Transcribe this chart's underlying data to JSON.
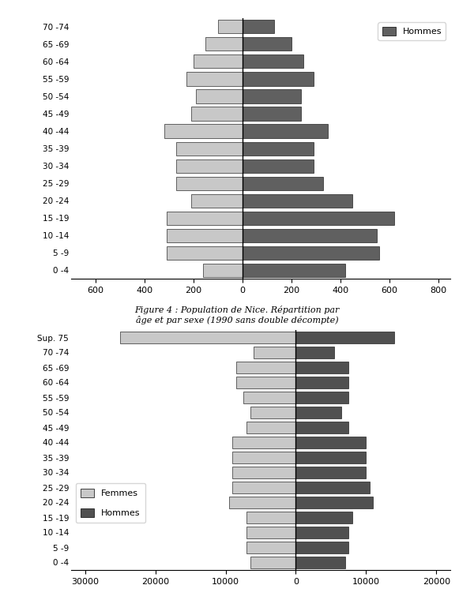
{
  "chart1": {
    "age_groups": [
      "0 -4",
      "5 -9",
      "10 -14",
      "15 -19",
      "20 -24",
      "25 -29",
      "30 -34",
      "35 -39",
      "40 -44",
      "45 -49",
      "50 -54",
      "55 -59",
      "60 -64",
      "65 -69",
      "70 -74"
    ],
    "femmes": [
      160,
      310,
      310,
      310,
      210,
      270,
      270,
      270,
      320,
      210,
      190,
      230,
      200,
      150,
      100
    ],
    "hommes": [
      420,
      560,
      550,
      620,
      450,
      330,
      290,
      290,
      350,
      240,
      240,
      290,
      250,
      200,
      130
    ],
    "color_femmes": "#c8c8c8",
    "color_hommes": "#606060",
    "xlim": [
      -700,
      850
    ],
    "xticks": [
      -600,
      -400,
      -200,
      0,
      200,
      400,
      600,
      800
    ],
    "xticklabels": [
      "600",
      "400",
      "200",
      "0",
      "200",
      "400",
      "600",
      "800"
    ]
  },
  "chart2": {
    "age_groups": [
      "0 -4",
      "5 -9",
      "10 -14",
      "15 -19",
      "20 -24",
      "25 -29",
      "30 -34",
      "35 -39",
      "40 -44",
      "45 -49",
      "50 -54",
      "55 -59",
      "60 -64",
      "65 -69",
      "70 -74",
      "Sup. 75"
    ],
    "femmes": [
      6500,
      7000,
      7000,
      7000,
      9500,
      9000,
      9000,
      9000,
      9000,
      7000,
      6500,
      7500,
      8500,
      8500,
      6000,
      25000
    ],
    "hommes": [
      7000,
      7500,
      7500,
      8000,
      11000,
      10500,
      10000,
      10000,
      10000,
      7500,
      6500,
      7500,
      7500,
      7500,
      5500,
      14000
    ],
    "color_femmes": "#c8c8c8",
    "color_hommes": "#505050",
    "xlim": [
      -32000,
      22000
    ],
    "xticks": [
      -30000,
      -20000,
      -10000,
      0,
      10000,
      20000
    ],
    "xticklabels": [
      "30000",
      "20000",
      "10000",
      "0",
      "10000",
      "20000"
    ]
  },
  "title": "Figure 4 : Population de Nice. Répartition par\nâge et par sexe (1990 sans double décompte)",
  "background_color": "#ffffff"
}
